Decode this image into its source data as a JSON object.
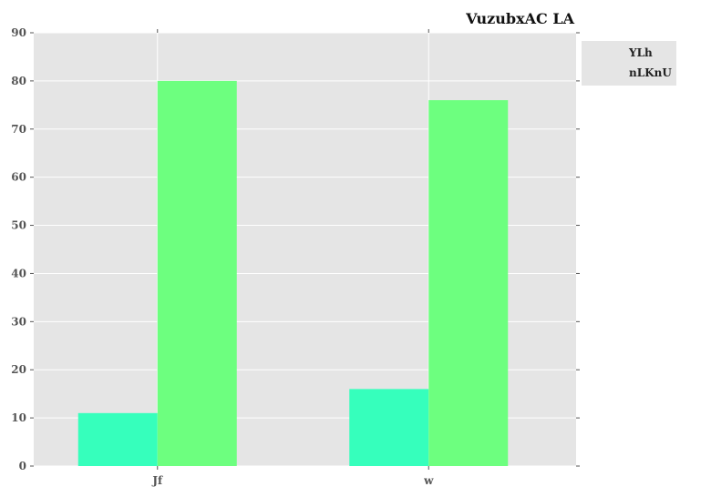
{
  "chart_data": {
    "type": "bar",
    "title": "VuzubxAC LA",
    "xlabel": "",
    "ylabel": "",
    "categories": [
      "Jf",
      "w"
    ],
    "series": [
      {
        "name": "YLh",
        "values": [
          11,
          16
        ],
        "color": "#36ffbc"
      },
      {
        "name": "nLKnU",
        "values": [
          80,
          76
        ],
        "color": "#6dff7f"
      }
    ],
    "ylim": [
      0,
      90
    ],
    "yticks": [
      0,
      10,
      20,
      30,
      40,
      50,
      60,
      70,
      80,
      90
    ],
    "grid": true,
    "legend_placement": "right-top, outside plot",
    "colors": {
      "plot_background": "#e5e5e5",
      "grid": "#ffffff",
      "legend_background": "#e5e5e5"
    }
  }
}
